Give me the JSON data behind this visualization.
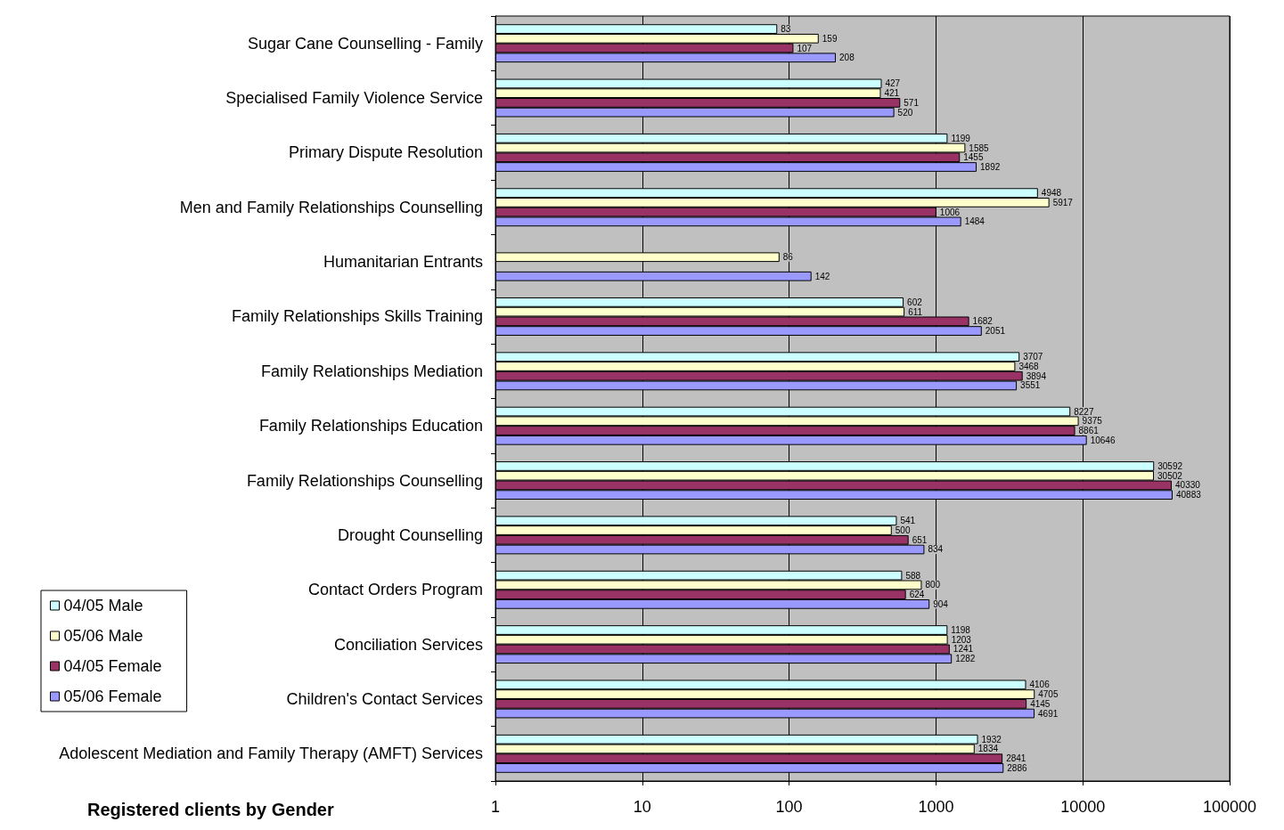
{
  "chart_data": {
    "type": "bar",
    "orientation": "horizontal",
    "log": "x",
    "xlabel": "Registered clients by Gender",
    "categories": [
      "Sugar Cane Counselling - Family",
      "Specialised Family Violence Service",
      "Primary Dispute Resolution",
      "Men and Family Relationships Counselling",
      "Humanitarian Entrants",
      "Family Relationships Skills Training",
      "Family Relationships Mediation",
      "Family Relationships Education",
      "Family Relationships Counselling",
      "Drought Counselling",
      "Contact Orders Program",
      "Conciliation Services",
      "Children's Contact Services",
      "Adolescent Mediation and Family Therapy (AMFT) Services"
    ],
    "series": [
      {
        "name": "04/05 Male",
        "color": "#ccffff",
        "values": [
          83,
          427,
          1199,
          4948,
          null,
          602,
          3707,
          8227,
          30592,
          541,
          588,
          1198,
          4106,
          1932
        ]
      },
      {
        "name": "05/06 Male",
        "color": "#ffffcc",
        "values": [
          159,
          421,
          1585,
          5917,
          86,
          611,
          3468,
          9375,
          30502,
          500,
          800,
          1203,
          4705,
          1834
        ]
      },
      {
        "name": "04/05 Female",
        "color": "#993366",
        "values": [
          107,
          571,
          1455,
          1006,
          null,
          1682,
          3894,
          8861,
          40330,
          651,
          624,
          1241,
          4145,
          2841
        ]
      },
      {
        "name": "05/06 Female",
        "color": "#9999ff",
        "values": [
          208,
          520,
          1892,
          1484,
          142,
          2051,
          3551,
          10646,
          40883,
          834,
          904,
          1282,
          4691,
          2886
        ]
      }
    ],
    "xlim": [
      1,
      100000
    ],
    "xticks": [
      1,
      10,
      100,
      1000,
      10000,
      100000
    ],
    "grid": "x",
    "legend": "left",
    "data_labels": true
  }
}
